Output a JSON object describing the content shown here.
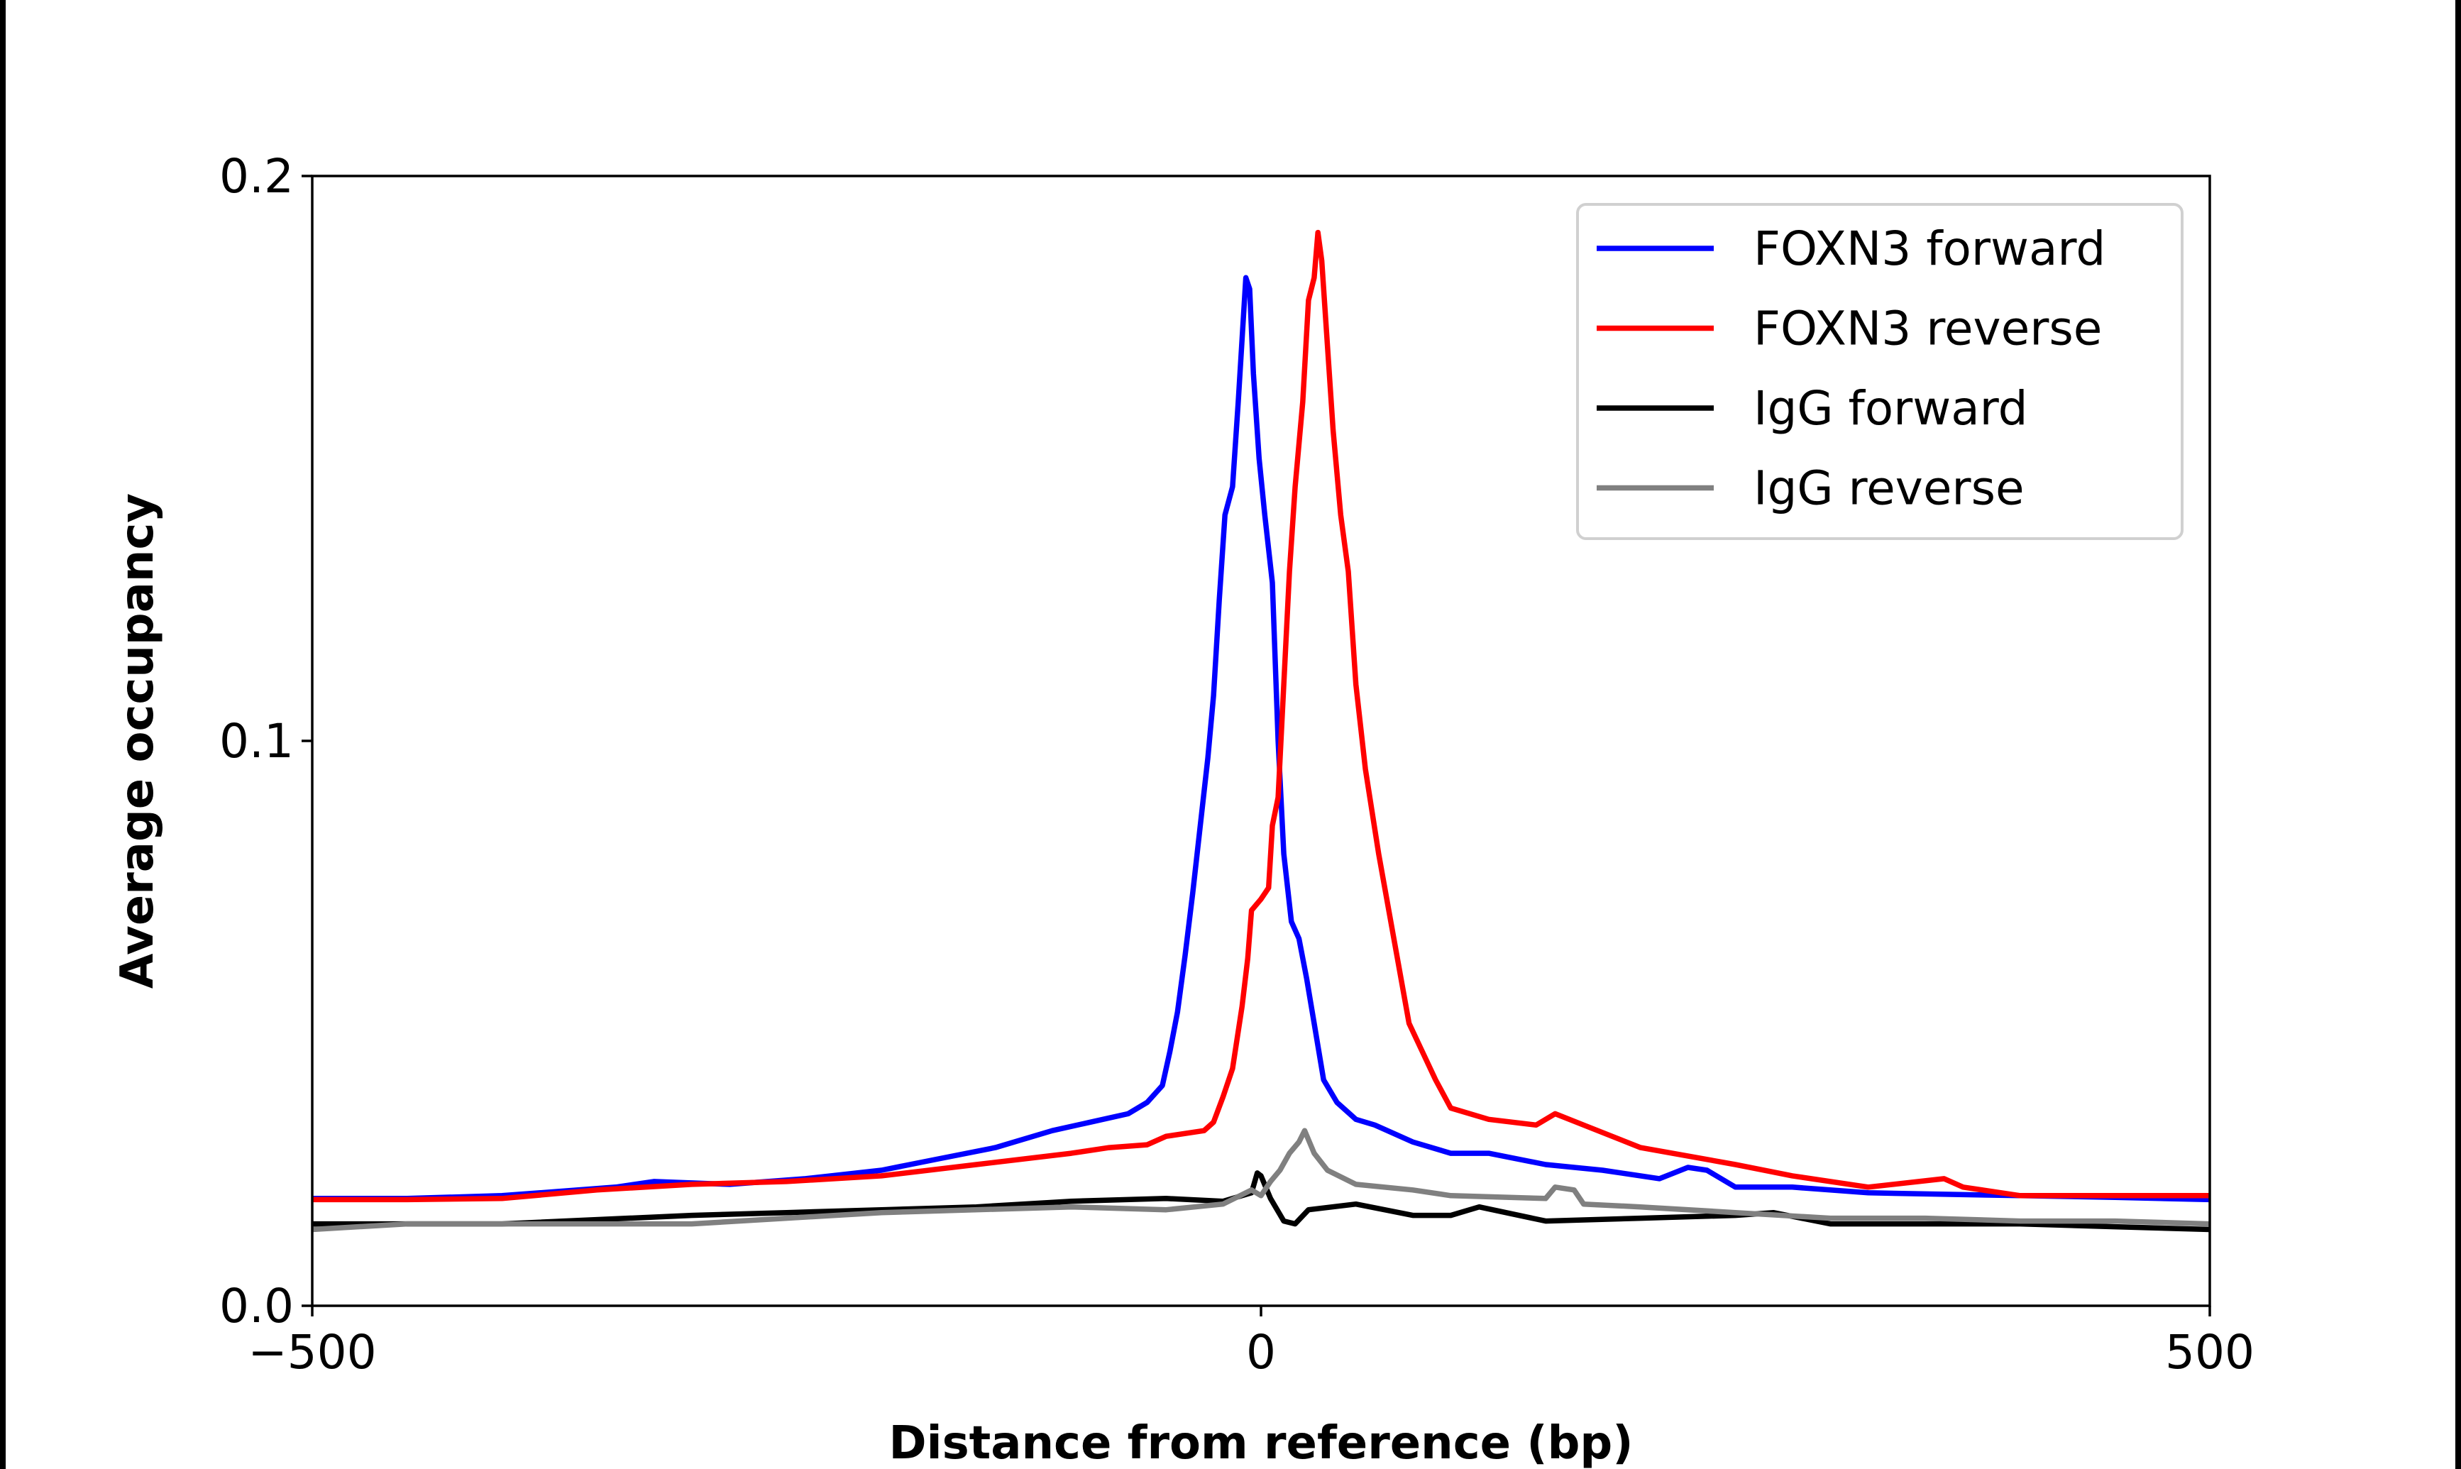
{
  "chart_data": {
    "type": "line",
    "title": "",
    "xlabel": "Distance from reference (bp)",
    "ylabel": "Average occupancy",
    "xlim": [
      -500,
      500
    ],
    "ylim": [
      0,
      0.2
    ],
    "xticks": [
      {
        "v": -500,
        "label": "−500"
      },
      {
        "v": 0,
        "label": "0"
      },
      {
        "v": 500,
        "label": "500"
      }
    ],
    "yticks": [
      {
        "v": 0,
        "label": "0.0"
      },
      {
        "v": 0.1,
        "label": "0.1"
      },
      {
        "v": 0.2,
        "label": "0.2"
      }
    ],
    "grid": false,
    "legend_placement": "top-right",
    "series": [
      {
        "name": "FOXN3 forward",
        "color": "#0000ff",
        "points": [
          [
            -500,
            0.019
          ],
          [
            -450,
            0.019
          ],
          [
            -400,
            0.0195
          ],
          [
            -340,
            0.021
          ],
          [
            -320,
            0.022
          ],
          [
            -280,
            0.0215
          ],
          [
            -240,
            0.0225
          ],
          [
            -200,
            0.024
          ],
          [
            -170,
            0.026
          ],
          [
            -140,
            0.028
          ],
          [
            -110,
            0.031
          ],
          [
            -90,
            0.0325
          ],
          [
            -70,
            0.034
          ],
          [
            -60,
            0.036
          ],
          [
            -52,
            0.039
          ],
          [
            -48,
            0.045
          ],
          [
            -44,
            0.052
          ],
          [
            -40,
            0.062
          ],
          [
            -36,
            0.073
          ],
          [
            -32,
            0.085
          ],
          [
            -28,
            0.097
          ],
          [
            -25,
            0.108
          ],
          [
            -22,
            0.125
          ],
          [
            -19,
            0.14
          ],
          [
            -15,
            0.145
          ],
          [
            -12,
            0.16
          ],
          [
            -8,
            0.182
          ],
          [
            -6,
            0.18
          ],
          [
            -4,
            0.165
          ],
          [
            -1,
            0.15
          ],
          [
            2,
            0.14
          ],
          [
            6,
            0.128
          ],
          [
            9,
            0.1
          ],
          [
            12,
            0.08
          ],
          [
            16,
            0.068
          ],
          [
            20,
            0.065
          ],
          [
            24,
            0.058
          ],
          [
            28,
            0.05
          ],
          [
            33,
            0.04
          ],
          [
            40,
            0.036
          ],
          [
            50,
            0.033
          ],
          [
            60,
            0.032
          ],
          [
            80,
            0.029
          ],
          [
            100,
            0.027
          ],
          [
            120,
            0.027
          ],
          [
            150,
            0.025
          ],
          [
            180,
            0.024
          ],
          [
            210,
            0.0225
          ],
          [
            225,
            0.0245
          ],
          [
            235,
            0.024
          ],
          [
            250,
            0.021
          ],
          [
            280,
            0.021
          ],
          [
            320,
            0.02
          ],
          [
            400,
            0.0195
          ],
          [
            450,
            0.0192
          ],
          [
            500,
            0.0188
          ]
        ]
      },
      {
        "name": "FOXN3 reverse",
        "color": "#ff0000",
        "points": [
          [
            -500,
            0.0188
          ],
          [
            -450,
            0.0188
          ],
          [
            -400,
            0.019
          ],
          [
            -350,
            0.0205
          ],
          [
            -300,
            0.0215
          ],
          [
            -250,
            0.022
          ],
          [
            -200,
            0.023
          ],
          [
            -150,
            0.025
          ],
          [
            -100,
            0.027
          ],
          [
            -80,
            0.028
          ],
          [
            -60,
            0.0285
          ],
          [
            -50,
            0.03
          ],
          [
            -30,
            0.031
          ],
          [
            -25,
            0.0325
          ],
          [
            -20,
            0.037
          ],
          [
            -15,
            0.042
          ],
          [
            -10,
            0.053
          ],
          [
            -7,
            0.0615
          ],
          [
            -5,
            0.07
          ],
          [
            0,
            0.072
          ],
          [
            4,
            0.074
          ],
          [
            6,
            0.085
          ],
          [
            9,
            0.09
          ],
          [
            12,
            0.11
          ],
          [
            15,
            0.13
          ],
          [
            18,
            0.145
          ],
          [
            22,
            0.16
          ],
          [
            25,
            0.178
          ],
          [
            28,
            0.182
          ],
          [
            30,
            0.19
          ],
          [
            32,
            0.185
          ],
          [
            35,
            0.17
          ],
          [
            38,
            0.155
          ],
          [
            42,
            0.14
          ],
          [
            46,
            0.13
          ],
          [
            50,
            0.11
          ],
          [
            55,
            0.095
          ],
          [
            62,
            0.08
          ],
          [
            70,
            0.065
          ],
          [
            78,
            0.05
          ],
          [
            85,
            0.045
          ],
          [
            92,
            0.04
          ],
          [
            100,
            0.035
          ],
          [
            120,
            0.033
          ],
          [
            145,
            0.032
          ],
          [
            155,
            0.034
          ],
          [
            170,
            0.032
          ],
          [
            185,
            0.03
          ],
          [
            200,
            0.028
          ],
          [
            250,
            0.025
          ],
          [
            280,
            0.023
          ],
          [
            320,
            0.021
          ],
          [
            360,
            0.0225
          ],
          [
            370,
            0.021
          ],
          [
            400,
            0.0195
          ],
          [
            450,
            0.0195
          ],
          [
            500,
            0.0195
          ]
        ]
      },
      {
        "name": "IgG forward",
        "color": "#000000",
        "points": [
          [
            -500,
            0.0145
          ],
          [
            -450,
            0.0145
          ],
          [
            -400,
            0.0145
          ],
          [
            -300,
            0.016
          ],
          [
            -250,
            0.0165
          ],
          [
            -200,
            0.017
          ],
          [
            -150,
            0.0175
          ],
          [
            -100,
            0.0185
          ],
          [
            -50,
            0.019
          ],
          [
            -20,
            0.0185
          ],
          [
            -5,
            0.02
          ],
          [
            -2,
            0.0235
          ],
          [
            0,
            0.023
          ],
          [
            5,
            0.019
          ],
          [
            12,
            0.015
          ],
          [
            18,
            0.0145
          ],
          [
            25,
            0.017
          ],
          [
            50,
            0.018
          ],
          [
            80,
            0.016
          ],
          [
            100,
            0.016
          ],
          [
            115,
            0.0175
          ],
          [
            150,
            0.015
          ],
          [
            200,
            0.0155
          ],
          [
            250,
            0.016
          ],
          [
            270,
            0.0165
          ],
          [
            300,
            0.0145
          ],
          [
            350,
            0.0145
          ],
          [
            400,
            0.0145
          ],
          [
            450,
            0.014
          ],
          [
            500,
            0.0135
          ]
        ]
      },
      {
        "name": "IgG reverse",
        "color": "#808080",
        "points": [
          [
            -500,
            0.0135
          ],
          [
            -450,
            0.0145
          ],
          [
            -400,
            0.0145
          ],
          [
            -300,
            0.0145
          ],
          [
            -200,
            0.0165
          ],
          [
            -100,
            0.0175
          ],
          [
            -50,
            0.017
          ],
          [
            -20,
            0.018
          ],
          [
            -5,
            0.0205
          ],
          [
            0,
            0.0195
          ],
          [
            5,
            0.022
          ],
          [
            10,
            0.024
          ],
          [
            15,
            0.027
          ],
          [
            20,
            0.029
          ],
          [
            23,
            0.031
          ],
          [
            28,
            0.027
          ],
          [
            35,
            0.024
          ],
          [
            50,
            0.0215
          ],
          [
            80,
            0.0205
          ],
          [
            100,
            0.0195
          ],
          [
            150,
            0.019
          ],
          [
            155,
            0.021
          ],
          [
            165,
            0.0205
          ],
          [
            170,
            0.018
          ],
          [
            200,
            0.0175
          ],
          [
            250,
            0.0165
          ],
          [
            300,
            0.0155
          ],
          [
            350,
            0.0155
          ],
          [
            400,
            0.015
          ],
          [
            450,
            0.015
          ],
          [
            500,
            0.0145
          ]
        ]
      }
    ]
  }
}
